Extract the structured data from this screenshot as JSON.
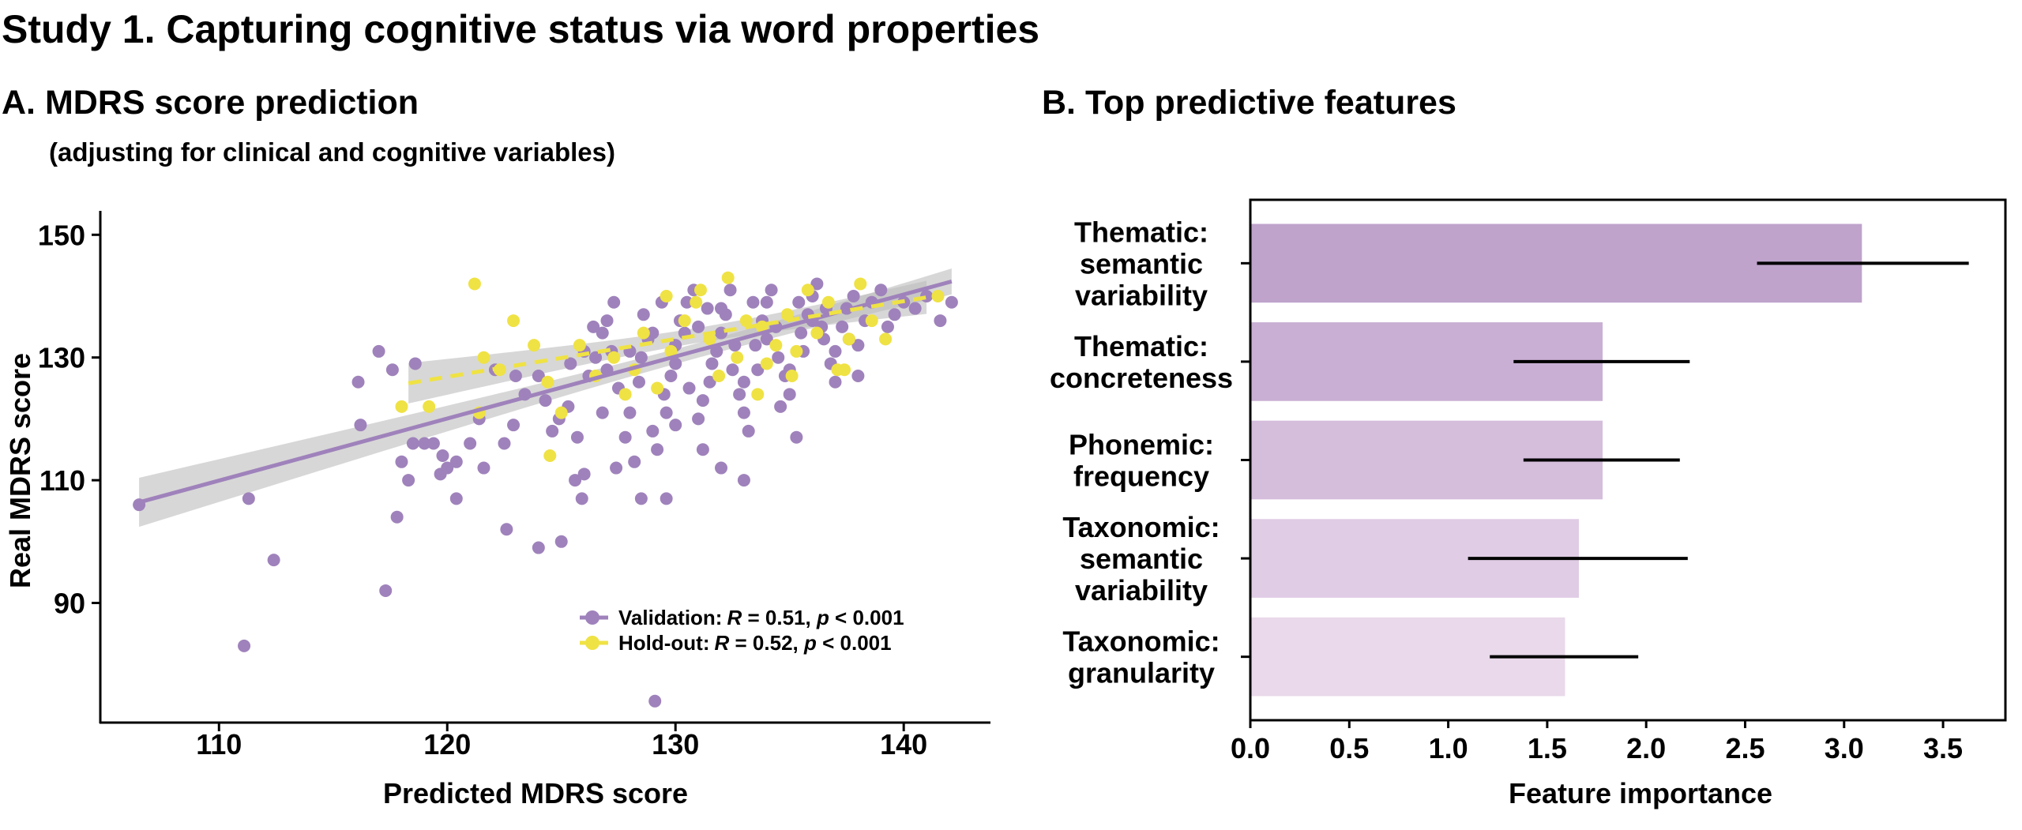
{
  "figure": {
    "title": "Study 1. Capturing cognitive status via word properties",
    "panel_a_title": "A. MDRS score prediction",
    "panel_a_subtitle": "(adjusting for clinical and cognitive variables)",
    "panel_b_title": "B. Top predictive features"
  },
  "colors": {
    "validation": "#9f82bb",
    "holdout": "#efe244",
    "ci_band": "#bdbdbd"
  },
  "chart_data": [
    {
      "type": "scatter",
      "title": "A. MDRS score prediction",
      "xlabel": "Predicted MDRS score",
      "ylabel": "Real MDRS score",
      "xlim": [
        104.8,
        143.8
      ],
      "ylim": [
        70.5,
        153.9
      ],
      "xticks": [
        "110",
        "120",
        "130",
        "140"
      ],
      "yticks": [
        "90",
        "110",
        "130",
        "150"
      ],
      "grid": false,
      "legend_position": "bottom-right",
      "legend": [
        {
          "name": "Validation:",
          "r_sym": "R",
          "r_text": " = 0.51, ",
          "p_sym": "p",
          "p_text": " < 0.001"
        },
        {
          "name": "Hold-out:",
          "r_sym": "R",
          "r_text": " = 0.52, ",
          "p_sym": "p",
          "p_text": " < 0.001"
        }
      ],
      "series": [
        {
          "name": "Validation",
          "fit": {
            "x": [
              106.5,
              142.1
            ],
            "y": [
              106.4,
              142.4
            ],
            "ci_center": 131,
            "ci_a": 1.44,
            "ci_b": 0.0243
          },
          "points": [
            [
              106.5,
              106
            ],
            [
              111.3,
              107
            ],
            [
              112.4,
              97
            ],
            [
              111.1,
              83
            ],
            [
              117.3,
              92
            ],
            [
              117.8,
              104
            ],
            [
              122.6,
              102
            ],
            [
              124,
              99
            ],
            [
              125,
              100
            ],
            [
              129.1,
              74
            ],
            [
              129.6,
              107
            ],
            [
              128.5,
              107
            ],
            [
              120.4,
              107
            ],
            [
              116.1,
              126
            ],
            [
              116.2,
              119
            ],
            [
              117,
              131
            ],
            [
              117.6,
              128
            ],
            [
              118.6,
              129
            ],
            [
              118,
              113
            ],
            [
              118.3,
              110
            ],
            [
              118.5,
              116
            ],
            [
              119,
              116
            ],
            [
              119.4,
              116
            ],
            [
              119.7,
              111
            ],
            [
              120,
              112
            ],
            [
              120.4,
              113
            ],
            [
              119.8,
              114
            ],
            [
              121,
              116
            ],
            [
              121.4,
              120
            ],
            [
              121.6,
              112
            ],
            [
              122.1,
              128
            ],
            [
              122.5,
              116
            ],
            [
              122.9,
              119
            ],
            [
              123,
              127
            ],
            [
              123.4,
              124
            ],
            [
              124,
              127
            ],
            [
              124.3,
              123
            ],
            [
              124.6,
              118
            ],
            [
              124.9,
              120
            ],
            [
              125.3,
              122
            ],
            [
              125.6,
              110
            ],
            [
              125.7,
              117
            ],
            [
              126,
              111
            ],
            [
              126.2,
              127
            ],
            [
              126.5,
              130
            ],
            [
              126.8,
              134
            ],
            [
              127,
              136
            ],
            [
              127.3,
              139
            ],
            [
              127.5,
              125
            ],
            [
              127.8,
              117
            ],
            [
              128,
              121
            ],
            [
              128.2,
              113
            ],
            [
              128.5,
              130
            ],
            [
              128.8,
              133
            ],
            [
              129,
              118
            ],
            [
              129.2,
              115
            ],
            [
              129.5,
              124
            ],
            [
              129.8,
              127
            ],
            [
              130,
              129
            ],
            [
              130.2,
              136
            ],
            [
              130.5,
              139
            ],
            [
              130.8,
              141
            ],
            [
              131,
              120
            ],
            [
              131.2,
              123
            ],
            [
              131.5,
              126
            ],
            [
              131.8,
              131
            ],
            [
              132,
              134
            ],
            [
              132.2,
              137
            ],
            [
              132.5,
              128
            ],
            [
              132.8,
              124
            ],
            [
              133,
              121
            ],
            [
              133.2,
              118
            ],
            [
              133.5,
              132
            ],
            [
              133.8,
              136
            ],
            [
              134,
              139
            ],
            [
              134.2,
              141
            ],
            [
              134.5,
              130
            ],
            [
              134.8,
              127
            ],
            [
              135,
              124
            ],
            [
              135.3,
              117
            ],
            [
              135.5,
              134
            ],
            [
              135.8,
              137
            ],
            [
              136,
              140
            ],
            [
              136.2,
              142
            ],
            [
              136.5,
              133
            ],
            [
              136.8,
              129
            ],
            [
              137,
              126
            ],
            [
              137.3,
              135
            ],
            [
              137.5,
              138
            ],
            [
              137.8,
              140
            ],
            [
              138,
              132
            ],
            [
              138.3,
              136
            ],
            [
              138.6,
              139
            ],
            [
              139,
              141
            ],
            [
              139.3,
              135
            ],
            [
              139.6,
              137
            ],
            [
              140,
              139
            ],
            [
              140.5,
              138
            ],
            [
              141,
              140
            ],
            [
              141.6,
              136
            ],
            [
              142.1,
              139
            ],
            [
              126,
              131
            ],
            [
              127,
              128
            ],
            [
              128,
              131
            ],
            [
              129,
              134
            ],
            [
              130,
              132
            ],
            [
              131,
              135
            ],
            [
              132,
              138
            ],
            [
              133,
              126
            ],
            [
              134,
              133
            ],
            [
              135,
              128
            ],
            [
              136,
              136
            ],
            [
              137,
              131
            ],
            [
              138,
              127
            ],
            [
              126.8,
              121
            ],
            [
              128.4,
              126
            ],
            [
              129.6,
              121
            ],
            [
              130.6,
              125
            ],
            [
              131.6,
              129
            ],
            [
              132.6,
              132
            ],
            [
              133.6,
              128
            ],
            [
              134.6,
              122
            ],
            [
              135.6,
              131
            ],
            [
              136.6,
              138
            ],
            [
              137.6,
              133
            ],
            [
              125.4,
              129
            ],
            [
              126.4,
              135
            ],
            [
              127.2,
              131
            ],
            [
              128.6,
              137
            ],
            [
              129.4,
              139
            ],
            [
              130.4,
              134
            ],
            [
              131.4,
              138
            ],
            [
              132.4,
              141
            ],
            [
              133.4,
              139
            ],
            [
              134.4,
              135
            ],
            [
              135.4,
              139
            ],
            [
              136.4,
              135
            ],
            [
              131.2,
              115
            ],
            [
              132,
              112
            ],
            [
              133,
              110
            ],
            [
              130,
              119
            ],
            [
              127.4,
              112
            ],
            [
              125.9,
              107
            ]
          ]
        },
        {
          "name": "Hold-out",
          "fit": {
            "x": [
              118.3,
              141.0
            ],
            "y": [
              125.8,
              139.8
            ],
            "ci_center": 131,
            "ci_a": 1.5,
            "ci_b": 0.058
          },
          "points": [
            [
              121.2,
              142
            ],
            [
              122.9,
              136
            ],
            [
              121.6,
              130
            ],
            [
              118,
              122
            ],
            [
              119.2,
              122
            ],
            [
              121.4,
              121
            ],
            [
              122.3,
              128
            ],
            [
              123.8,
              132
            ],
            [
              124.4,
              126
            ],
            [
              125,
              121
            ],
            [
              124.5,
              114
            ],
            [
              126.5,
              127
            ],
            [
              127.3,
              130
            ],
            [
              127.8,
              124
            ],
            [
              128.6,
              134
            ],
            [
              129.2,
              125
            ],
            [
              129.8,
              131
            ],
            [
              130.4,
              136
            ],
            [
              130.9,
              139
            ],
            [
              131.5,
              133
            ],
            [
              131.9,
              127
            ],
            [
              132.3,
              143
            ],
            [
              132.7,
              130
            ],
            [
              133.1,
              136
            ],
            [
              133.6,
              124
            ],
            [
              134,
              129
            ],
            [
              134.4,
              132
            ],
            [
              134.9,
              137
            ],
            [
              135.3,
              131
            ],
            [
              135.8,
              141
            ],
            [
              136.2,
              134
            ],
            [
              136.7,
              139
            ],
            [
              137.1,
              128
            ],
            [
              137.6,
              133
            ],
            [
              138.1,
              142
            ],
            [
              138.6,
              136
            ],
            [
              137.4,
              128
            ],
            [
              139.2,
              133
            ],
            [
              141.5,
              140
            ],
            [
              129.6,
              140
            ],
            [
              131.1,
              141
            ],
            [
              125.8,
              132
            ],
            [
              128.2,
              128
            ],
            [
              133.8,
              135
            ],
            [
              135.1,
              127
            ]
          ]
        }
      ]
    },
    {
      "type": "bar",
      "orientation": "horizontal",
      "title": "B. Top predictive features",
      "xlabel": "Feature importance",
      "ylabel": "",
      "xlim": [
        0,
        3.815
      ],
      "xticks": [
        "0.0",
        "0.5",
        "1.0",
        "1.5",
        "2.0",
        "2.5",
        "3.0",
        "3.5"
      ],
      "grid": false,
      "categories": [
        {
          "lines": [
            "Thematic:",
            "semantic",
            "variability"
          ],
          "value": 3.09,
          "err": [
            2.56,
            3.63
          ],
          "color": "#bfa3cb"
        },
        {
          "lines": [
            "Thematic:",
            "concreteness"
          ],
          "value": 1.78,
          "err": [
            1.33,
            2.22
          ],
          "color": "#c9afd4"
        },
        {
          "lines": [
            "Phonemic:",
            "frequency"
          ],
          "value": 1.78,
          "err": [
            1.38,
            2.17
          ],
          "color": "#d5bddc"
        },
        {
          "lines": [
            "Taxonomic:",
            "semantic",
            "variability"
          ],
          "value": 1.66,
          "err": [
            1.1,
            2.21
          ],
          "color": "#e0cce5"
        },
        {
          "lines": [
            "Taxonomic:",
            "granularity"
          ],
          "value": 1.59,
          "err": [
            1.21,
            1.96
          ],
          "color": "#e9d9ea"
        }
      ]
    }
  ]
}
